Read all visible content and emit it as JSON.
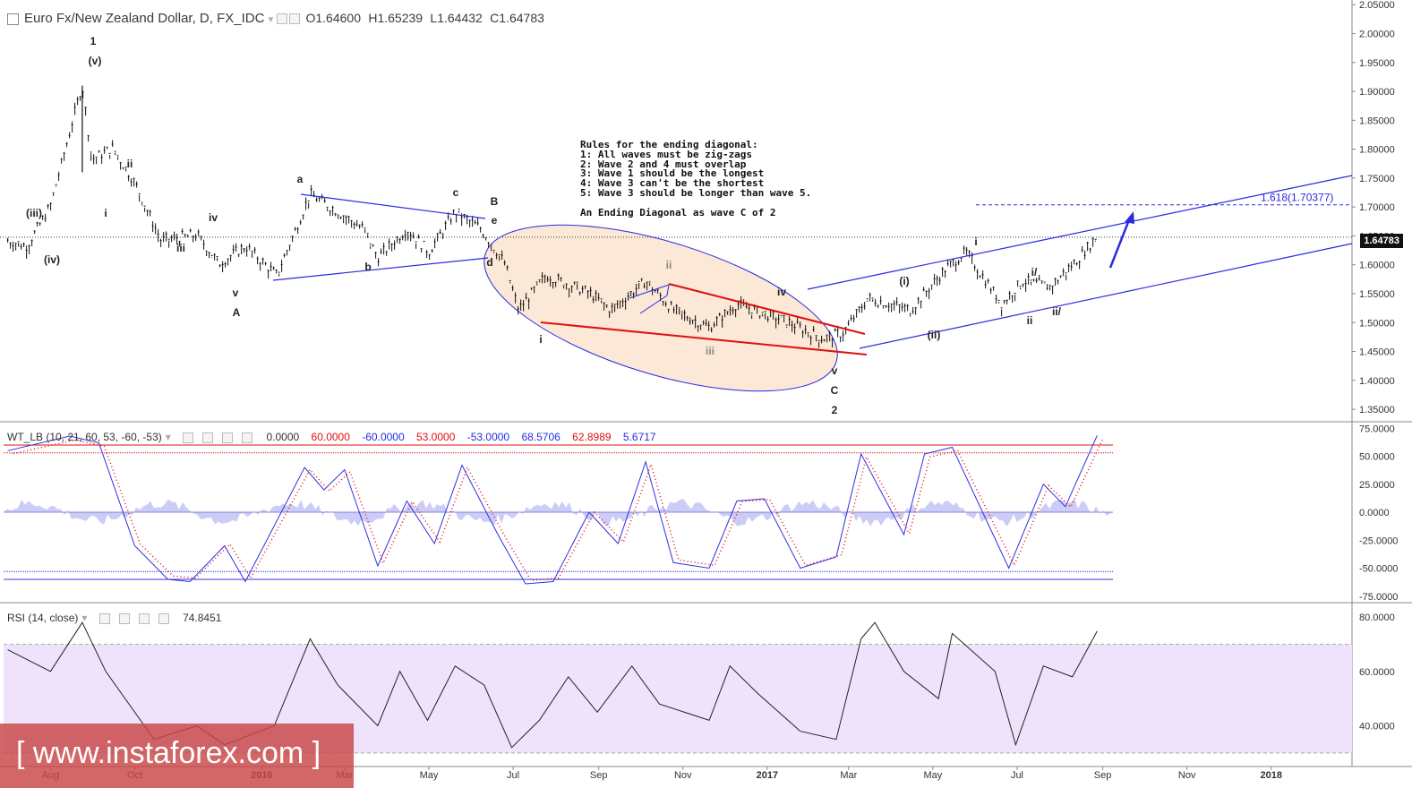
{
  "header": {
    "symbol": "Euro Fx/New Zealand Dollar, D, FX_IDC",
    "o_label": "O",
    "o": "1.64600",
    "h_label": "H",
    "h": "1.65239",
    "l_label": "L",
    "l": "1.64432",
    "c_label": "C",
    "c": "1.64783"
  },
  "last_price": "1.64783",
  "annotation": {
    "lines": [
      "Rules for the ending diagonal:",
      "1: All waves must be zig-zags",
      "2: Wave 2 and 4 must overlap",
      "3: Wave 1 should be the longest",
      "4: Wave 3 can't be the shortest",
      "5: Wave 3 should be longer than wave 5.",
      "",
      "An Ending Diagonal as wave C of 2"
    ]
  },
  "fib_label": "1.618(1.70377)",
  "watermark": "[ www.instaforex.com ]",
  "wt": {
    "title": "WT_LB (10, 21, 60, 53, -60, -53)",
    "values": [
      "0.0000",
      "60.0000",
      "-60.0000",
      "53.0000",
      "-53.0000",
      "68.5706",
      "62.8989",
      "5.6717"
    ],
    "colors": [
      "#333333",
      "#e01010",
      "#2030e0",
      "#e01010",
      "#2030e0",
      "#2030e0",
      "#e01010",
      "#2030e0"
    ]
  },
  "rsi": {
    "title": "RSI (14, close)",
    "value": "74.8451"
  },
  "colors": {
    "candle": "#111111",
    "channel": "#2a2ae0",
    "diagonal": "#e01010",
    "ellipse_fill": "#fbe8d6",
    "rsi_band": "#efe2fb",
    "wt_fast": "#3030e0",
    "wt_slow": "#e01010"
  },
  "chart_data": [
    {
      "type": "candlestick",
      "title": "Euro Fx/New Zealand Dollar, D, FX_IDC",
      "x_ticks": [
        "Aug",
        "Oct",
        "2016",
        "Mar",
        "May",
        "Jul",
        "Sep",
        "Nov",
        "2017",
        "Mar",
        "May",
        "Jul",
        "Sep",
        "Nov",
        "2018"
      ],
      "y_ticks": [
        "2.05000",
        "2.00000",
        "1.95000",
        "1.90000",
        "1.85000",
        "1.80000",
        "1.75000",
        "1.70000",
        "1.65000",
        "1.60000",
        "1.55000",
        "1.50000",
        "1.45000",
        "1.40000",
        "1.35000"
      ],
      "ylim": [
        1.33,
        2.055
      ],
      "series": [
        {
          "values": [
            [
              "2015-07-01",
              1.64
            ],
            [
              "2015-07-15",
              1.63
            ],
            [
              "2015-08-01",
              1.7
            ],
            [
              "2015-08-24",
              1.91
            ],
            [
              "2015-08-31",
              1.78
            ],
            [
              "2015-09-15",
              1.8
            ],
            [
              "2015-10-01",
              1.74
            ],
            [
              "2015-10-20",
              1.64
            ],
            [
              "2015-11-15",
              1.65
            ],
            [
              "2015-12-01",
              1.6
            ],
            [
              "2015-12-20",
              1.63
            ],
            [
              "2016-01-12",
              1.58
            ],
            [
              "2016-02-05",
              1.72
            ],
            [
              "2016-02-25",
              1.69
            ],
            [
              "2016-03-15",
              1.66
            ],
            [
              "2016-03-25",
              1.61
            ],
            [
              "2016-04-15",
              1.66
            ],
            [
              "2016-05-01",
              1.62
            ],
            [
              "2016-05-20",
              1.69
            ],
            [
              "2016-06-08",
              1.66
            ],
            [
              "2016-06-25",
              1.6
            ],
            [
              "2016-07-05",
              1.52
            ],
            [
              "2016-07-25",
              1.58
            ],
            [
              "2016-08-25",
              1.55
            ],
            [
              "2016-09-10",
              1.52
            ],
            [
              "2016-10-05",
              1.57
            ],
            [
              "2016-10-25",
              1.52
            ],
            [
              "2016-11-20",
              1.49
            ],
            [
              "2016-12-10",
              1.53
            ],
            [
              "2017-01-15",
              1.5
            ],
            [
              "2017-02-10",
              1.47
            ],
            [
              "2017-02-25",
              1.48
            ],
            [
              "2017-03-15",
              1.54
            ],
            [
              "2017-04-15",
              1.52
            ],
            [
              "2017-05-10",
              1.59
            ],
            [
              "2017-05-25",
              1.62
            ],
            [
              "2017-06-20",
              1.53
            ],
            [
              "2017-07-05",
              1.57
            ],
            [
              "2017-07-25",
              1.56
            ],
            [
              "2017-08-15",
              1.61
            ],
            [
              "2017-08-28",
              1.64783
            ]
          ]
        }
      ],
      "wave_labels": [
        "1",
        "(v)",
        "ii",
        "(iii)",
        "i",
        "(iv)",
        "iii",
        "iv",
        "v",
        "A",
        "a",
        "b",
        "c",
        "B",
        "e",
        "d",
        "i",
        "ii",
        "iii",
        "iv",
        "v",
        "C",
        "2",
        "(i)",
        "(ii)",
        "i",
        "ii",
        "i/",
        "ii/"
      ],
      "fib_level": 1.70377
    },
    {
      "type": "line",
      "title": "WT_LB (10, 21, 60, 53, -60, -53)",
      "y_ticks": [
        "75.0000",
        "50.0000",
        "25.0000",
        "0.0000",
        "-25.0000",
        "-50.0000",
        "-75.0000"
      ],
      "ylim": [
        -80,
        80
      ],
      "levels": [
        60,
        53,
        -53,
        -60,
        0
      ],
      "series": [
        {
          "values": [
            [
              "2015-07-01",
              55
            ],
            [
              "2015-08-15",
              68
            ],
            [
              "2015-09-05",
              62
            ],
            [
              "2015-10-01",
              -30
            ],
            [
              "2015-10-25",
              -60
            ],
            [
              "2015-11-10",
              -62
            ],
            [
              "2015-12-05",
              -30
            ],
            [
              "2015-12-20",
              -62
            ],
            [
              "2016-02-01",
              40
            ],
            [
              "2016-02-15",
              20
            ],
            [
              "2016-03-01",
              38
            ],
            [
              "2016-03-25",
              -48
            ],
            [
              "2016-04-15",
              10
            ],
            [
              "2016-05-05",
              -28
            ],
            [
              "2016-05-25",
              42
            ],
            [
              "2016-06-20",
              -20
            ],
            [
              "2016-07-10",
              -64
            ],
            [
              "2016-07-30",
              -62
            ],
            [
              "2016-08-25",
              0
            ],
            [
              "2016-09-15",
              -28
            ],
            [
              "2016-10-05",
              45
            ],
            [
              "2016-10-25",
              -45
            ],
            [
              "2016-11-20",
              -50
            ],
            [
              "2016-12-10",
              10
            ],
            [
              "2016-12-30",
              12
            ],
            [
              "2017-01-25",
              -50
            ],
            [
              "2017-02-20",
              -40
            ],
            [
              "2017-03-10",
              52
            ],
            [
              "2017-04-10",
              -20
            ],
            [
              "2017-04-25",
              52
            ],
            [
              "2017-05-15",
              58
            ],
            [
              "2017-06-25",
              -50
            ],
            [
              "2017-07-20",
              25
            ],
            [
              "2017-08-05",
              5
            ],
            [
              "2017-08-28",
              68.57
            ]
          ]
        }
      ]
    },
    {
      "type": "line",
      "title": "RSI (14, close)",
      "y_ticks": [
        "80.0000",
        "60.0000",
        "40.0000"
      ],
      "ylim": [
        25,
        85
      ],
      "band": [
        30,
        70
      ],
      "series": [
        {
          "values": [
            [
              "2015-07-01",
              68
            ],
            [
              "2015-08-01",
              60
            ],
            [
              "2015-08-24",
              78
            ],
            [
              "2015-09-10",
              60
            ],
            [
              "2015-10-15",
              35
            ],
            [
              "2015-11-15",
              40
            ],
            [
              "2015-12-05",
              33
            ],
            [
              "2016-01-10",
              40
            ],
            [
              "2016-02-05",
              72
            ],
            [
              "2016-02-25",
              55
            ],
            [
              "2016-03-25",
              40
            ],
            [
              "2016-04-10",
              60
            ],
            [
              "2016-04-30",
              42
            ],
            [
              "2016-05-20",
              62
            ],
            [
              "2016-06-10",
              55
            ],
            [
              "2016-06-30",
              32
            ],
            [
              "2016-07-20",
              42
            ],
            [
              "2016-08-10",
              58
            ],
            [
              "2016-08-31",
              45
            ],
            [
              "2016-09-25",
              62
            ],
            [
              "2016-10-15",
              48
            ],
            [
              "2016-11-20",
              42
            ],
            [
              "2016-12-05",
              62
            ],
            [
              "2016-12-25",
              52
            ],
            [
              "2017-01-25",
              38
            ],
            [
              "2017-02-20",
              35
            ],
            [
              "2017-03-10",
              72
            ],
            [
              "2017-03-20",
              78
            ],
            [
              "2017-04-10",
              60
            ],
            [
              "2017-05-05",
              50
            ],
            [
              "2017-05-15",
              74
            ],
            [
              "2017-06-15",
              60
            ],
            [
              "2017-06-30",
              33
            ],
            [
              "2017-07-20",
              62
            ],
            [
              "2017-08-10",
              58
            ],
            [
              "2017-08-28",
              74.8451
            ]
          ]
        }
      ]
    }
  ]
}
